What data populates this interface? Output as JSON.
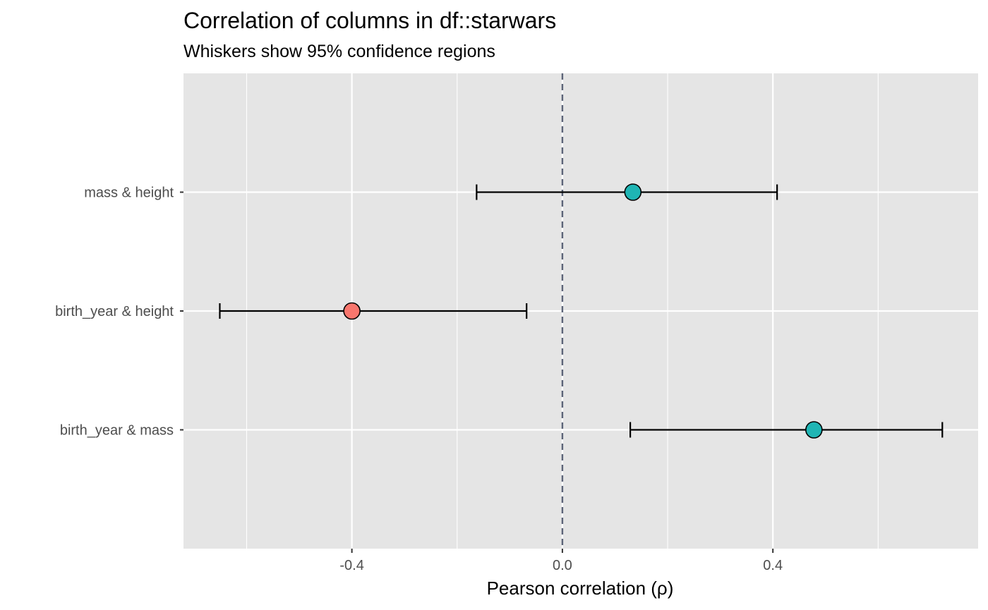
{
  "chart_data": {
    "type": "scatter",
    "title": "Correlation of columns in df::starwars",
    "subtitle": "Whiskers show 95% confidence regions",
    "xlabel": "Pearson correlation (ρ)",
    "ylabel": "",
    "xlim": [
      -0.72,
      0.79
    ],
    "x_ticks": [
      -0.4,
      0.0,
      0.4
    ],
    "x_tick_labels": [
      "-0.4",
      "0.0",
      "0.4"
    ],
    "reference_line": {
      "x": 0,
      "style": "dashed",
      "color": "#5c6478"
    },
    "grid": true,
    "legend": "none",
    "colors": {
      "negative": "#f8766d",
      "positive": "#1fb5b4",
      "panel": "#e5e5e5",
      "grid": "#ffffff"
    },
    "categories": [
      "mass & height",
      "birth_year & height",
      "birth_year & mass"
    ],
    "estimates": [
      0.134,
      -0.4,
      0.478
    ],
    "ci_low": [
      -0.163,
      -0.651,
      0.129
    ],
    "ci_high": [
      0.408,
      -0.068,
      0.722
    ],
    "point_colors": [
      "#1fb5b4",
      "#f8766d",
      "#1fb5b4"
    ]
  }
}
